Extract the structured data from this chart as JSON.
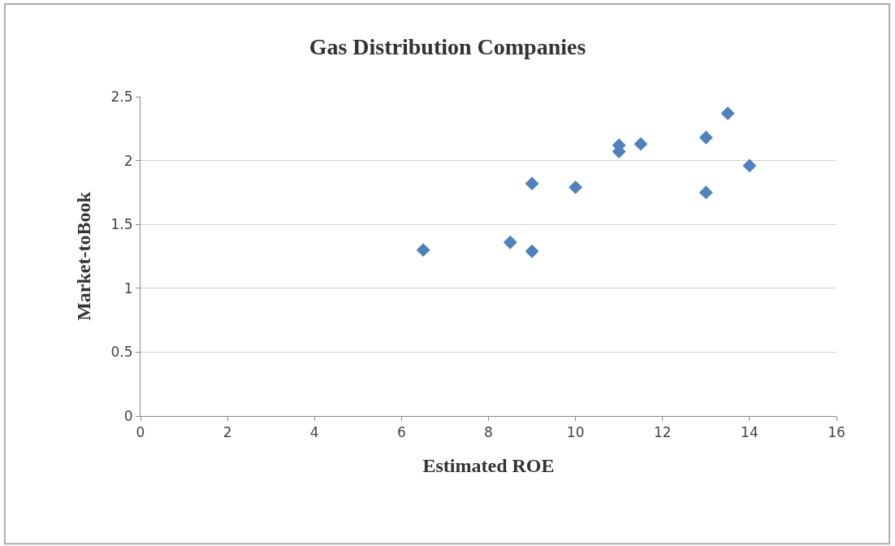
{
  "chart_data": {
    "type": "scatter",
    "title": "Gas Distribution Companies",
    "xlabel": "Estimated ROE",
    "ylabel": "Market-toBook",
    "x": [
      6.5,
      8.5,
      9,
      9,
      10,
      11,
      11,
      11.5,
      13,
      13,
      13.5,
      14
    ],
    "series": [
      {
        "color": "#4f81bd",
        "values": [
          1.3,
          1.36,
          1.29,
          1.82,
          1.79,
          2.12,
          2.07,
          2.13,
          2.18,
          1.75,
          2.37,
          1.96
        ]
      }
    ],
    "xlim": [
      0,
      16
    ],
    "xticks": [
      0,
      2,
      4,
      6,
      8,
      10,
      12,
      14,
      16
    ],
    "ylim": [
      0,
      2.5
    ],
    "yticks": [
      0,
      0.5,
      1,
      1.5,
      2,
      2.5
    ],
    "grid": "y",
    "marker": "diamond"
  }
}
